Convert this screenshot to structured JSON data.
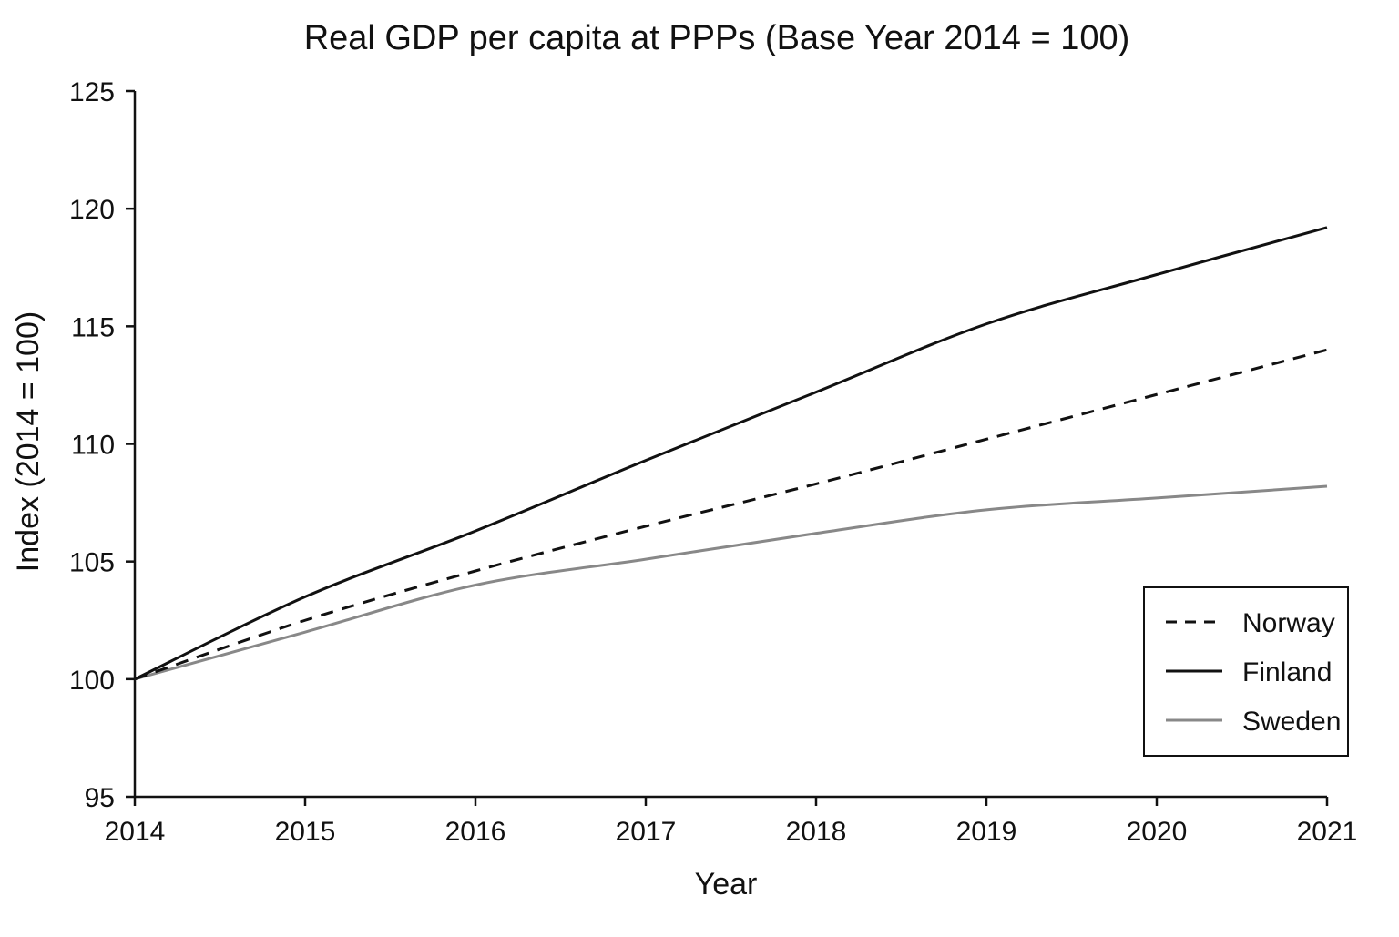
{
  "chart_data": {
    "type": "line",
    "title": "Real GDP per capita at PPPs (Base Year 2014 = 100)",
    "xlabel": "Year",
    "ylabel": "Index (2014 = 100)",
    "x": [
      2014,
      2015,
      2016,
      2017,
      2018,
      2019,
      2020,
      2021
    ],
    "xlim": [
      2014,
      2021
    ],
    "ylim": [
      95,
      125
    ],
    "yticks": [
      95,
      100,
      105,
      110,
      115,
      120,
      125
    ],
    "grid": false,
    "legend_position": "bottom-right",
    "series": [
      {
        "name": "Norway",
        "values": [
          100,
          102.5,
          104.6,
          106.5,
          108.3,
          110.2,
          112.1,
          114.0
        ],
        "color": "#111111",
        "style": "dashed"
      },
      {
        "name": "Finland",
        "values": [
          100,
          103.5,
          106.3,
          109.3,
          112.2,
          115.1,
          117.2,
          119.2
        ],
        "color": "#111111",
        "style": "solid"
      },
      {
        "name": "Sweden",
        "values": [
          100,
          102.0,
          104.0,
          105.1,
          106.2,
          107.2,
          107.7,
          108.2
        ],
        "color": "#888888",
        "style": "solid"
      }
    ]
  }
}
